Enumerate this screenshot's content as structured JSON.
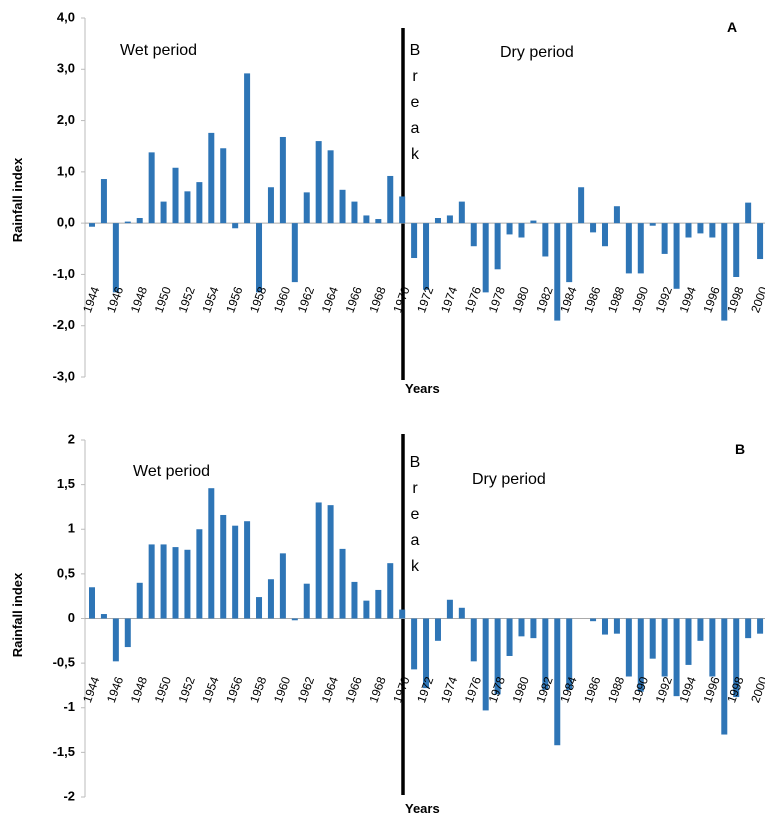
{
  "chart_data": [
    {
      "type": "bar",
      "panel_label": "A",
      "ylabel": "Rainfall index",
      "xlabel": "Years",
      "annotations": [
        "Wet period",
        "Dry period",
        "Break"
      ],
      "color": "#2e75b6",
      "categories": [
        "1944",
        null,
        "1946",
        null,
        "1948",
        null,
        "1950",
        null,
        "1952",
        null,
        "1954",
        null,
        "1956",
        null,
        "1958",
        null,
        "1960",
        null,
        "1962",
        null,
        "1964",
        null,
        "1966",
        null,
        "1968",
        null,
        "1970",
        null,
        "1972",
        null,
        "1974",
        null,
        "1976",
        null,
        "1978",
        null,
        "1980",
        null,
        "1982",
        null,
        "1984",
        null,
        "1986",
        null,
        "1988",
        null,
        "1990",
        null,
        "1992",
        null,
        "1994",
        null,
        "1996",
        null,
        "1998",
        null,
        "2000"
      ],
      "values": [
        -0.07,
        0.86,
        -1.35,
        0.03,
        0.1,
        1.38,
        0.42,
        1.08,
        0.62,
        0.8,
        1.76,
        1.46,
        -0.1,
        2.92,
        -1.35,
        0.7,
        1.68,
        -1.15,
        0.6,
        1.6,
        1.42,
        0.65,
        0.42,
        0.15,
        0.08,
        0.92,
        0.52,
        -0.68,
        -1.3,
        0.1,
        0.15,
        0.42,
        -0.45,
        -1.35,
        -0.9,
        -0.22,
        -0.28,
        0.05,
        -0.65,
        -1.9,
        -1.15,
        0.7,
        -0.18,
        -0.45,
        0.33,
        -0.98,
        -0.98,
        -0.05,
        -0.6,
        -1.28,
        -0.28,
        -0.2,
        -0.28,
        -1.9,
        -1.05,
        0.4,
        -0.7
      ],
      "ylim": [
        -3,
        4
      ],
      "yticks": [
        {
          "value": -3,
          "label": "-3,0"
        },
        {
          "value": -2,
          "label": "-2,0"
        },
        {
          "value": -1,
          "label": "-1,0"
        },
        {
          "value": 0,
          "label": "0,0"
        },
        {
          "value": 1,
          "label": "1,0"
        },
        {
          "value": 2,
          "label": "2,0"
        },
        {
          "value": 3,
          "label": "3,0"
        },
        {
          "value": 4,
          "label": "4,0"
        }
      ]
    },
    {
      "type": "bar",
      "panel_label": "B",
      "ylabel": "Rainfall index",
      "xlabel": "Years",
      "annotations": [
        "Wet period",
        "Dry period",
        "Break"
      ],
      "color": "#2e75b6",
      "categories": [
        "1944",
        null,
        "1946",
        null,
        "1948",
        null,
        "1950",
        null,
        "1952",
        null,
        "1954",
        null,
        "1956",
        null,
        "1958",
        null,
        "1960",
        null,
        "1962",
        null,
        "1964",
        null,
        "1966",
        null,
        "1968",
        null,
        "1970",
        null,
        "1972",
        null,
        "1974",
        null,
        "1976",
        null,
        "1978",
        null,
        "1980",
        null,
        "1982",
        null,
        "1984",
        null,
        "1986",
        null,
        "1988",
        null,
        "1990",
        null,
        "1992",
        null,
        "1994",
        null,
        "1996",
        null,
        "1998",
        null,
        "2000"
      ],
      "values": [
        0.35,
        0.05,
        -0.48,
        -0.32,
        0.4,
        0.83,
        0.83,
        0.8,
        0.77,
        1.0,
        1.46,
        1.16,
        1.04,
        1.09,
        0.24,
        0.44,
        0.73,
        -0.02,
        0.39,
        1.3,
        1.27,
        0.78,
        0.41,
        0.2,
        0.32,
        0.62,
        0.1,
        -0.57,
        -0.78,
        -0.25,
        0.21,
        0.12,
        -0.48,
        -1.03,
        -0.85,
        -0.42,
        -0.2,
        -0.22,
        -0.8,
        -1.42,
        -0.8,
        0,
        -0.03,
        -0.18,
        -0.17,
        -0.65,
        -0.82,
        -0.45,
        -0.65,
        -0.87,
        -0.52,
        -0.25,
        -0.65,
        -1.3,
        -0.88,
        -0.22,
        -0.17
      ],
      "ylim": [
        -2,
        2
      ],
      "yticks": [
        -2,
        {
          "value": -1.5,
          "label": "-1,5"
        },
        -1,
        {
          "value": -0.5,
          "label": "-0,5"
        },
        0,
        {
          "value": 0.5,
          "label": "0,5"
        },
        1,
        {
          "value": 1.5,
          "label": "1,5"
        },
        2
      ]
    }
  ]
}
